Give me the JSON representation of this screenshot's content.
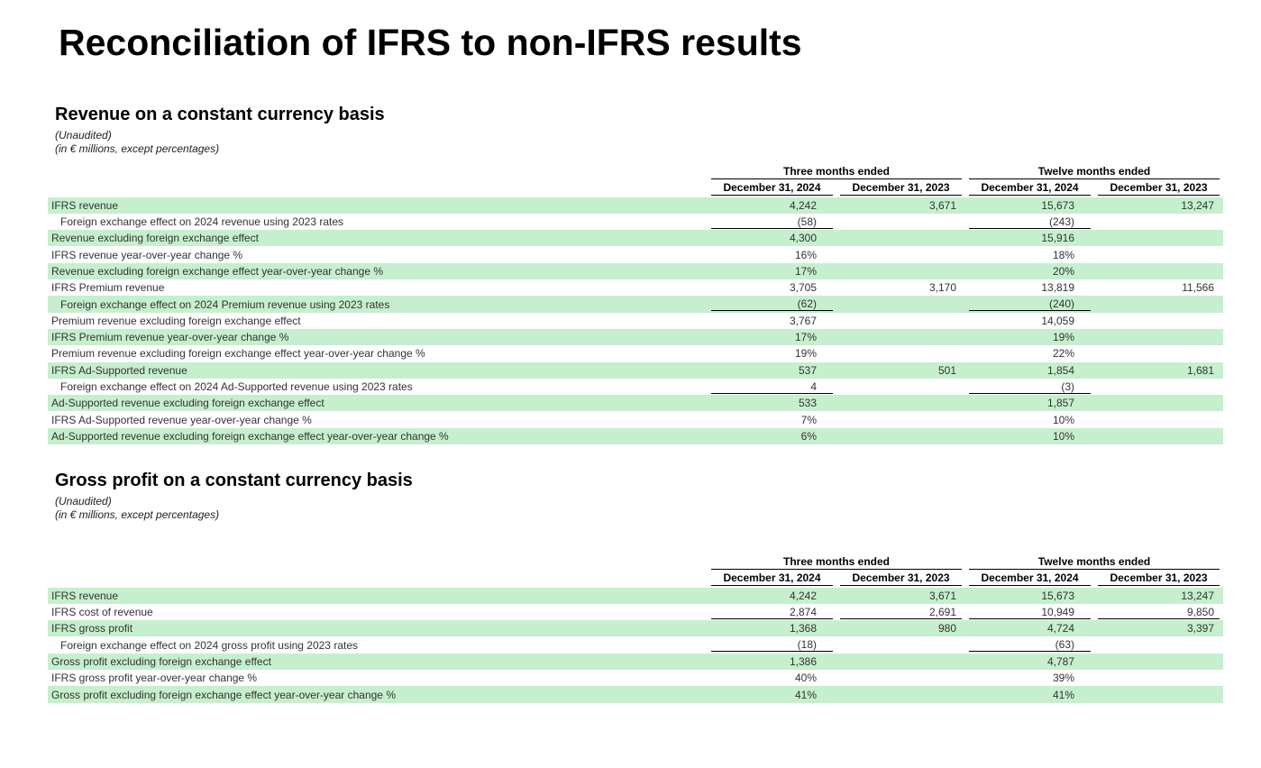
{
  "title": "Reconciliation of IFRS to non-IFRS results",
  "sections": [
    {
      "title": "Revenue on a constant currency basis",
      "notes": [
        "(Unaudited)",
        "(in € millions, except percentages)"
      ],
      "group_headers": [
        "Three months ended",
        "Twelve months ended"
      ],
      "columns": [
        "December 31, 2024",
        "December 31, 2023",
        "December 31, 2024",
        "December 31, 2023"
      ],
      "rows": [
        {
          "label": "IFRS revenue",
          "values": [
            "4,242",
            "3,671",
            "15,673",
            "13,247"
          ]
        },
        {
          "label": "Foreign exchange effect on 2024 revenue using 2023 rates",
          "values": [
            "(58)",
            null,
            "(243)",
            null
          ]
        },
        {
          "label": "Revenue excluding foreign exchange effect",
          "values": [
            "4,300",
            null,
            "15,916",
            null
          ]
        },
        {
          "label": "IFRS revenue year-over-year change %",
          "values": [
            "16%",
            null,
            "18%",
            null
          ]
        },
        {
          "label": "Revenue excluding foreign exchange effect year-over-year change %",
          "values": [
            "17%",
            null,
            "20%",
            null
          ]
        },
        {
          "label": "IFRS Premium revenue",
          "values": [
            "3,705",
            "3,170",
            "13,819",
            "11,566"
          ]
        },
        {
          "label": "Foreign exchange effect on 2024 Premium revenue using 2023 rates",
          "values": [
            "(62)",
            null,
            "(240)",
            null
          ]
        },
        {
          "label": "Premium revenue excluding foreign exchange effect",
          "values": [
            "3,767",
            null,
            "14,059",
            null
          ]
        },
        {
          "label": "IFRS Premium revenue year-over-year change %",
          "values": [
            "17%",
            null,
            "19%",
            null
          ]
        },
        {
          "label": "Premium revenue excluding foreign exchange effect year-over-year change %",
          "values": [
            "19%",
            null,
            "22%",
            null
          ]
        },
        {
          "label": "IFRS Ad-Supported revenue",
          "values": [
            "537",
            "501",
            "1,854",
            "1,681"
          ]
        },
        {
          "label": "Foreign exchange effect on 2024 Ad-Supported revenue using 2023 rates",
          "values": [
            "4",
            null,
            "(3)",
            null
          ]
        },
        {
          "label": "Ad-Supported revenue excluding foreign exchange effect",
          "values": [
            "533",
            null,
            "1,857",
            null
          ]
        },
        {
          "label": "IFRS Ad-Supported revenue year-over-year change %",
          "values": [
            "7%",
            null,
            "10%",
            null
          ]
        },
        {
          "label": "Ad-Supported revenue excluding foreign exchange effect year-over-year change %",
          "values": [
            "6%",
            null,
            "10%",
            null
          ]
        }
      ]
    },
    {
      "title": "Gross profit on a constant currency basis",
      "notes": [
        "(Unaudited)",
        "(in € millions, except percentages)"
      ],
      "group_headers": [
        "Three months ended",
        "Twelve months ended"
      ],
      "columns": [
        "December 31, 2024",
        "December 31, 2023",
        "December 31, 2024",
        "December 31, 2023"
      ],
      "rows": [
        {
          "label": "IFRS revenue",
          "values": [
            "4,242",
            "3,671",
            "15,673",
            "13,247"
          ]
        },
        {
          "label": "IFRS cost of revenue",
          "values": [
            "2,874",
            "2,691",
            "10,949",
            "9,850"
          ]
        },
        {
          "label": "IFRS gross profit",
          "values": [
            "1,368",
            "980",
            "4,724",
            "3,397"
          ]
        },
        {
          "label": "Foreign exchange effect on 2024 gross profit using 2023 rates",
          "values": [
            "(18)",
            null,
            "(63)",
            null
          ]
        },
        {
          "label": "Gross profit excluding foreign exchange effect",
          "values": [
            "1,386",
            null,
            "4,787",
            null
          ]
        },
        {
          "label": "IFRS gross profit year-over-year change %",
          "values": [
            "40%",
            null,
            "39%",
            null
          ]
        },
        {
          "label": "Gross profit excluding foreign exchange effect year-over-year change %",
          "values": [
            "41%",
            null,
            "41%",
            null
          ]
        }
      ]
    }
  ]
}
